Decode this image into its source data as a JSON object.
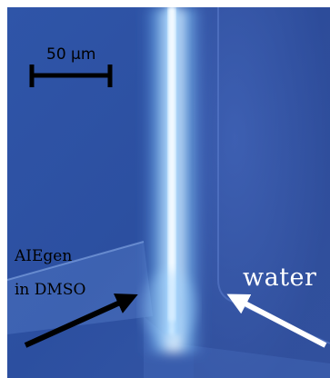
{
  "scale_bar": {
    "label": "50 μm"
  },
  "labels": {
    "aiegen": "AIEgen",
    "dmso": "in DMSO",
    "water": "water"
  },
  "colors": {
    "background_blue": "#2a4c9c",
    "channel_glow": "#e8f6ff",
    "scale_bar": "#000000",
    "arrow_left": "#000000",
    "arrow_right": "#ffffff"
  },
  "arrows": [
    {
      "name": "aiegen-flow-arrow",
      "color": "black",
      "direction": "up-right"
    },
    {
      "name": "water-flow-arrow",
      "color": "white",
      "direction": "up-left"
    }
  ]
}
